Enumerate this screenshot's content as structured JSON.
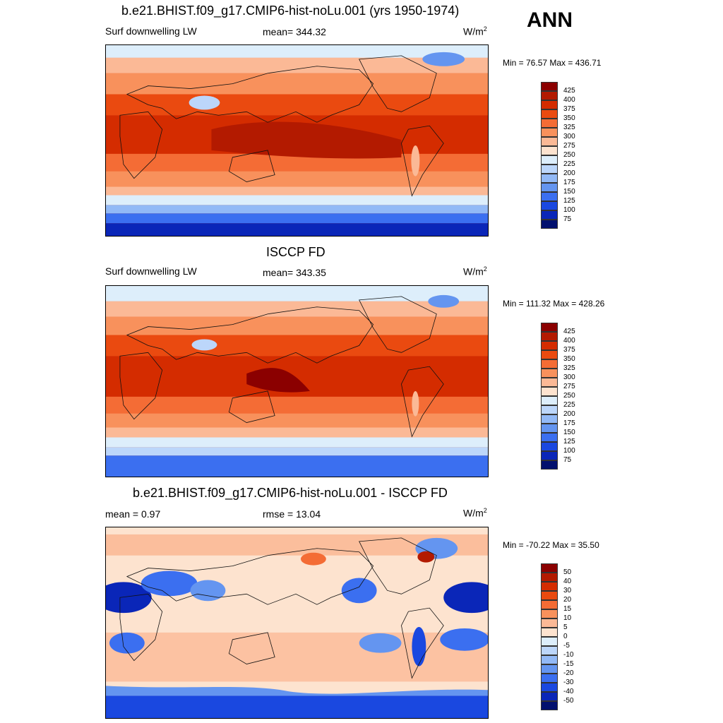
{
  "season": "ANN",
  "panels": [
    {
      "title": "b.e21.BHIST.f09_g17.CMIP6-hist-noLu.001 (yrs 1950-1974)",
      "left_label": "Surf downwelling LW",
      "center_label": "mean= 344.32",
      "units_base": "W/m",
      "units_exp": "2",
      "minmax": "Min =  76.57 Max = 436.71",
      "kind": "field"
    },
    {
      "title": "ISCCP FD",
      "left_label": "Surf downwelling LW",
      "center_label": "mean= 343.35",
      "units_base": "W/m",
      "units_exp": "2",
      "minmax": "Min = 111.32 Max = 428.26",
      "kind": "field"
    },
    {
      "title": "b.e21.BHIST.f09_g17.CMIP6-hist-noLu.001 - ISCCP FD",
      "left_label": "mean =   0.97",
      "center_label": "rmse =  13.04",
      "units_base": "W/m",
      "units_exp": "2",
      "minmax": "Min = -70.22 Max =  35.50",
      "kind": "diff"
    }
  ],
  "colorbars": {
    "field": {
      "labels": [
        "425",
        "400",
        "375",
        "350",
        "325",
        "300",
        "275",
        "250",
        "225",
        "200",
        "175",
        "150",
        "125",
        "100",
        "75"
      ],
      "colors": [
        "#8b0000",
        "#b31a00",
        "#d42c00",
        "#ea4a10",
        "#f46c35",
        "#f8915c",
        "#fbb996",
        "#fde3cf",
        "#ddeefb",
        "#bcd6fa",
        "#92b9f6",
        "#6495f0",
        "#3b6ff0",
        "#1a48e0",
        "#0a26b8",
        "#02106e"
      ]
    },
    "diff": {
      "labels": [
        "50",
        "40",
        "30",
        "20",
        "15",
        "10",
        "5",
        "0",
        "-5",
        "-10",
        "-15",
        "-20",
        "-30",
        "-40",
        "-50"
      ],
      "colors": [
        "#8b0000",
        "#b31a00",
        "#d42c00",
        "#ea4a10",
        "#f46c35",
        "#f8915c",
        "#fbb996",
        "#fde3cf",
        "#ddeefb",
        "#bcd6fa",
        "#92b9f6",
        "#6495f0",
        "#3b6ff0",
        "#1a48e0",
        "#0a26b8",
        "#02106e"
      ]
    }
  }
}
